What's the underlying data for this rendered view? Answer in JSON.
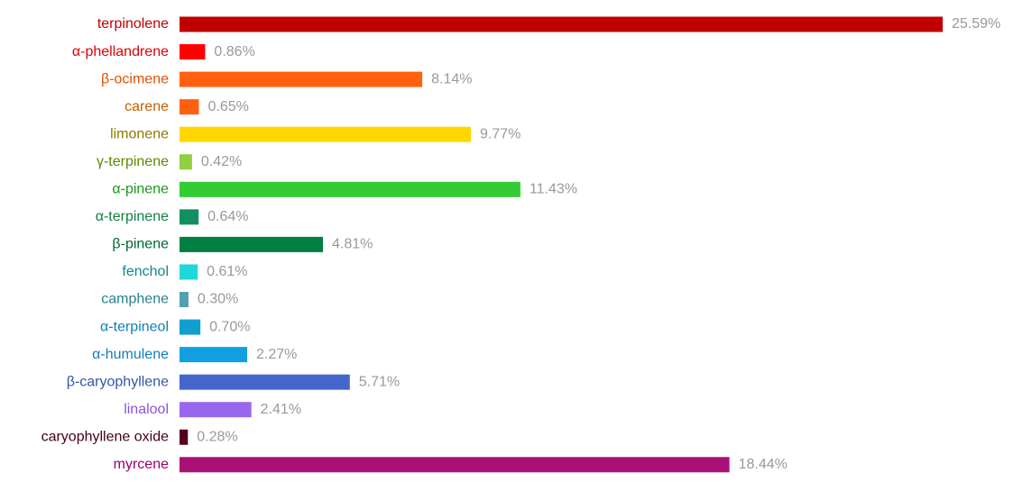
{
  "chart_data": {
    "type": "bar",
    "orientation": "horizontal",
    "categories": [
      "terpinolene",
      "α-phellandrene",
      "β-ocimene",
      "carene",
      "limonene",
      "γ-terpinene",
      "α-pinene",
      "α-terpinene",
      "β-pinene",
      "fenchol",
      "camphene",
      "α-terpineol",
      "α-humulene",
      "β-caryophyllene",
      "linalool",
      "caryophyllene oxide",
      "myrcene"
    ],
    "values": [
      25.59,
      0.86,
      8.14,
      0.65,
      9.77,
      0.42,
      11.43,
      0.64,
      4.81,
      0.61,
      0.3,
      0.7,
      2.27,
      5.71,
      2.41,
      0.28,
      18.44
    ],
    "value_labels": [
      "25.59%",
      "0.86%",
      "8.14%",
      "0.65%",
      "9.77%",
      "0.42%",
      "11.43%",
      "0.64%",
      "4.81%",
      "0.61%",
      "0.30%",
      "0.70%",
      "2.27%",
      "5.71%",
      "2.41%",
      "0.28%",
      "18.44%"
    ],
    "colors": [
      "#c00000",
      "#ff0000",
      "#ff6010",
      "#ff6010",
      "#ffd700",
      "#90d040",
      "#33cc33",
      "#109060",
      "#008040",
      "#20d8d8",
      "#50a0b0",
      "#10a0d0",
      "#10a0e0",
      "#4466cc",
      "#9966ee",
      "#550022",
      "#aa1177"
    ],
    "label_colors": [
      "#c00000",
      "#e00000",
      "#e05000",
      "#c06000",
      "#8a7a00",
      "#5a8a00",
      "#1a9a1a",
      "#108040",
      "#006830",
      "#108888",
      "#2a8090",
      "#1080b0",
      "#1080c0",
      "#3355aa",
      "#8855dd",
      "#440018",
      "#990066"
    ],
    "value_label_color": "#999999"
  }
}
